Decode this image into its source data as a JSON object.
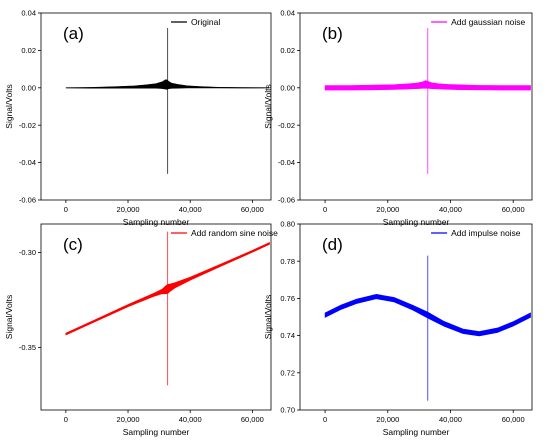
{
  "chart_data": [
    {
      "panel": "(a)",
      "type": "line",
      "legend": "Original",
      "color": "#000000",
      "xlabel": "Sampling number",
      "ylabel": "Signal/Volts",
      "xlim": [
        -8000,
        66000
      ],
      "ylim": [
        -0.06,
        0.04
      ],
      "xticks": [
        0,
        20000,
        40000,
        60000
      ],
      "xtick_labels": [
        "0",
        "20,000",
        "40,000",
        "60,000"
      ],
      "yticks": [
        -0.06,
        -0.04,
        -0.02,
        0.0,
        0.02,
        0.04
      ],
      "ytick_labels": [
        "-0.06",
        "-0.04",
        "-0.02",
        "0.00",
        "0.02",
        "0.04"
      ],
      "x": [
        0,
        8000,
        16000,
        22000,
        26000,
        29000,
        31000,
        32000,
        32500,
        33000,
        34000,
        36000,
        39000,
        43000,
        49000,
        56000,
        65536
      ],
      "y": [
        0.0,
        0.0,
        0.0002,
        0.0004,
        0.0007,
        0.001,
        0.0014,
        0.0018,
        0.0017,
        0.0015,
        0.0011,
        0.0008,
        0.0005,
        0.0003,
        0.0001,
        0.0,
        0.0
      ],
      "band": [
        0.0,
        0.0002,
        0.0004,
        0.0006,
        0.0009,
        0.0012,
        0.0018,
        0.0025,
        0.0025,
        0.002,
        0.0014,
        0.001,
        0.0006,
        0.0004,
        0.0002,
        0.0001,
        0.0
      ],
      "spike": {
        "x": 32768,
        "ymin": -0.046,
        "ymax": 0.032
      }
    },
    {
      "panel": "(b)",
      "type": "line",
      "legend": "Add gaussian noise",
      "color": "#ff00ff",
      "xlabel": "Sampling number",
      "ylabel": "Signal/Volts",
      "xlim": [
        -8000,
        66000
      ],
      "ylim": [
        -0.06,
        0.04
      ],
      "xticks": [
        0,
        20000,
        40000,
        60000
      ],
      "xtick_labels": [
        "0",
        "20,000",
        "40,000",
        "60,000"
      ],
      "yticks": [
        -0.06,
        -0.04,
        -0.02,
        0.0,
        0.02,
        0.04
      ],
      "ytick_labels": [
        "-0.06",
        "-0.04",
        "-0.02",
        "0.00",
        "0.02",
        "0.04"
      ],
      "x": [
        0,
        8000,
        16000,
        22000,
        26000,
        29000,
        31000,
        32000,
        32500,
        33000,
        34000,
        36000,
        39000,
        43000,
        49000,
        56000,
        65536
      ],
      "y": [
        0.0,
        0.0,
        0.0002,
        0.0004,
        0.0007,
        0.001,
        0.0014,
        0.0018,
        0.0017,
        0.0015,
        0.0011,
        0.0008,
        0.0005,
        0.0003,
        0.0001,
        0.0,
        0.0
      ],
      "band": [
        0.0012,
        0.0012,
        0.0013,
        0.0013,
        0.0014,
        0.0015,
        0.0017,
        0.002,
        0.002,
        0.0018,
        0.0016,
        0.0014,
        0.0013,
        0.0013,
        0.0012,
        0.0012,
        0.0012
      ],
      "spike": {
        "x": 32768,
        "ymin": -0.046,
        "ymax": 0.032
      }
    },
    {
      "panel": "(c)",
      "type": "line",
      "legend": "Add random sine noise",
      "color": "#ff0000",
      "xlabel": "Sampling number",
      "ylabel": "Signal/Volts",
      "xlim": [
        -8000,
        66000
      ],
      "ylim": [
        -0.383,
        -0.285
      ],
      "xticks": [
        0,
        20000,
        40000,
        60000
      ],
      "xtick_labels": [
        "0",
        "20,000",
        "40,000",
        "60,000"
      ],
      "yticks": [
        -0.35,
        -0.3
      ],
      "ytick_labels": [
        "-0.35",
        "-0.30"
      ],
      "x": [
        0,
        10000,
        20000,
        28000,
        31000,
        32000,
        32768,
        33500,
        35000,
        40000,
        50000,
        60000,
        65536
      ],
      "y": [
        -0.343,
        -0.3355,
        -0.328,
        -0.3225,
        -0.3205,
        -0.3198,
        -0.3192,
        -0.3186,
        -0.3174,
        -0.3138,
        -0.3066,
        -0.2994,
        -0.2952
      ],
      "band": [
        0.0005,
        0.0005,
        0.0006,
        0.0008,
        0.0012,
        0.002,
        0.0024,
        0.002,
        0.0014,
        0.0008,
        0.0006,
        0.0005,
        0.0005
      ],
      "spike": {
        "x": 32768,
        "ymin": -0.37,
        "ymax": -0.289
      }
    },
    {
      "panel": "(d)",
      "type": "line",
      "legend": "Add impulse noise",
      "color": "#0000ff",
      "xlabel": "Sampling number",
      "ylabel": "Signal/Volts",
      "xlim": [
        -8000,
        66000
      ],
      "ylim": [
        0.7,
        0.8
      ],
      "xticks": [
        0,
        20000,
        40000,
        60000
      ],
      "xtick_labels": [
        "0",
        "20,000",
        "40,000",
        "60,000"
      ],
      "yticks": [
        0.7,
        0.72,
        0.74,
        0.76,
        0.78,
        0.8
      ],
      "ytick_labels": [
        "0.70",
        "0.72",
        "0.74",
        "0.76",
        "0.78",
        "0.80"
      ],
      "x": [
        0,
        5000,
        10000,
        16384,
        22000,
        28000,
        32768,
        38000,
        44000,
        49152,
        55000,
        60000,
        65536
      ],
      "y": [
        0.751,
        0.7552,
        0.7584,
        0.761,
        0.7593,
        0.755,
        0.751,
        0.7463,
        0.7423,
        0.741,
        0.7429,
        0.7463,
        0.751
      ],
      "band": [
        0.0012,
        0.0012,
        0.0012,
        0.0012,
        0.0012,
        0.0013,
        0.0016,
        0.0013,
        0.0012,
        0.0012,
        0.0012,
        0.0012,
        0.0012
      ],
      "spike": {
        "x": 32768,
        "ymin": 0.705,
        "ymax": 0.783
      }
    }
  ]
}
